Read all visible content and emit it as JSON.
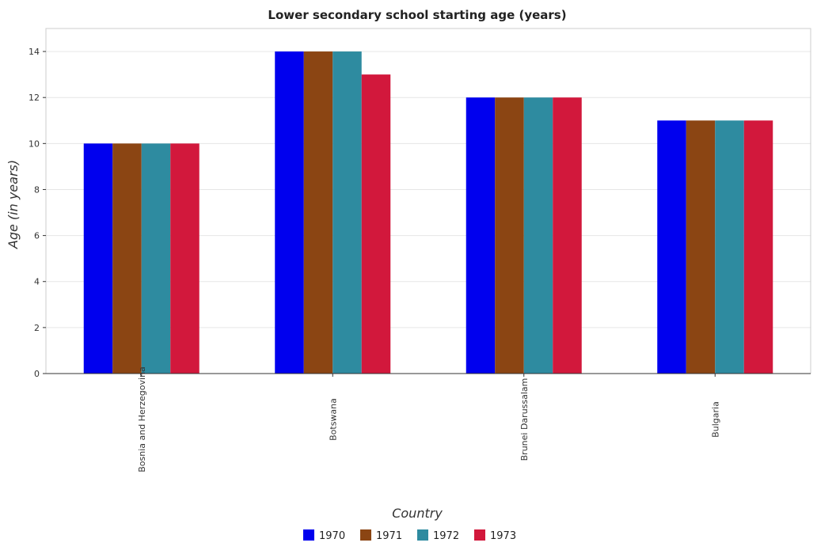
{
  "chart_data": {
    "type": "bar",
    "title": "Lower secondary school starting age (years)",
    "xlabel": "Country",
    "ylabel": "Age (in years)",
    "categories": [
      "Bosnia and Herzegovina",
      "Botswana",
      "Brunei Darussalam",
      "Bulgaria"
    ],
    "series": [
      {
        "name": "1970",
        "color": "#0000ee",
        "values": [
          10,
          14,
          12,
          11
        ]
      },
      {
        "name": "1971",
        "color": "#8b4513",
        "values": [
          10,
          14,
          12,
          11
        ]
      },
      {
        "name": "1972",
        "color": "#2e8ba0",
        "values": [
          10,
          14,
          12,
          11
        ]
      },
      {
        "name": "1973",
        "color": "#d2183c",
        "values": [
          10,
          13,
          12,
          11
        ]
      }
    ],
    "ylim": [
      0,
      15
    ],
    "yticks": [
      0,
      2,
      4,
      6,
      8,
      10,
      12,
      14
    ],
    "grid": true,
    "legend_position": "bottom-center"
  }
}
